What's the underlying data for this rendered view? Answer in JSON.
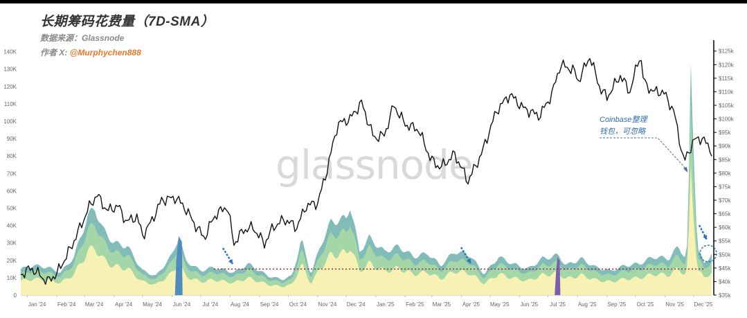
{
  "header": {
    "title": "长期筹码花费量（7D-SMA）",
    "source": "数据来源：Glassnode",
    "author_prefix": "作者 X:",
    "author_handle": "@Murphychen888",
    "watermark": "glassnode"
  },
  "annotation": {
    "line1": "Coinbase整理",
    "line2": "钱包，可忽略"
  },
  "colors": {
    "price_line": "#111111",
    "area_yellow": "#fbf2b4",
    "area_green": "#a6d7a6",
    "area_teal": "#7bb8b4",
    "area_blue": "#4f8bbf",
    "area_purple": "#7a5fb0",
    "reference_line": "#8b2c3a",
    "arrow": "#2f72c0"
  },
  "chart_data": {
    "type": "area",
    "title": "长期筹码花费量（7D-SMA）",
    "x_axis": {
      "tick_labels": [
        "Jan '24",
        "Feb '24",
        "Mar '24",
        "Apr '24",
        "May '24",
        "Jun '24",
        "Jul '24",
        "Aug '24",
        "Sep '24",
        "Oct '24",
        "Nov '24",
        "Dec '24",
        "Jan '25",
        "Feb '25",
        "Mar '25",
        "Apr '25",
        "May '25",
        "Jun '25",
        "Jul '25",
        "Aug '25",
        "Sep '25",
        "Oct '25",
        "Nov '25",
        "Dec '25"
      ],
      "range": [
        "2023-12-25",
        "2025-12-20"
      ]
    },
    "y_left": {
      "ylim": [
        0,
        145000
      ],
      "tick_labels": [
        "0",
        "10K",
        "20K",
        "30K",
        "40K",
        "50K",
        "60K",
        "70K",
        "80K",
        "90K",
        "100K",
        "110K",
        "120K",
        "130K",
        "140K"
      ]
    },
    "y_right": {
      "ylim": [
        35000,
        128000
      ],
      "tick_labels": [
        "$35k",
        "$40k",
        "$45k",
        "$50k",
        "$55k",
        "$60k",
        "$65k",
        "$70k",
        "$75k",
        "$80k",
        "$85k",
        "$90k",
        "$95k",
        "$100k",
        "$105k",
        "$110k",
        "$115k",
        "$120k",
        "$125k"
      ]
    },
    "reference_line": 15000,
    "series": [
      {
        "axis": "left",
        "x": [
          "2023-12-25",
          "2024-01-08",
          "2024-01-22",
          "2024-02-05",
          "2024-02-19",
          "2024-03-04",
          "2024-03-12",
          "2024-03-20",
          "2024-04-01",
          "2024-04-15",
          "2024-05-01",
          "2024-05-15",
          "2024-06-01",
          "2024-06-08",
          "2024-06-15",
          "2024-07-01",
          "2024-07-15",
          "2024-08-05",
          "2024-08-20",
          "2024-09-10",
          "2024-09-25",
          "2024-10-05",
          "2024-10-15",
          "2024-10-25",
          "2024-11-05",
          "2024-11-15",
          "2024-12-01",
          "2024-12-05",
          "2024-12-15",
          "2024-12-25",
          "2025-01-10",
          "2025-01-25",
          "2025-02-10",
          "2025-02-25",
          "2025-03-10",
          "2025-03-25",
          "2025-04-10",
          "2025-04-25",
          "2025-05-10",
          "2025-05-25",
          "2025-06-10",
          "2025-06-25",
          "2025-07-05",
          "2025-07-12",
          "2025-07-20",
          "2025-08-05",
          "2025-08-20",
          "2025-09-05",
          "2025-09-20",
          "2025-10-05",
          "2025-10-20",
          "2025-11-05",
          "2025-11-15",
          "2025-11-22",
          "2025-11-25",
          "2025-11-28",
          "2025-12-05",
          "2025-12-12",
          "2025-12-20"
        ],
        "values": [
          15000,
          17000,
          16000,
          13000,
          22000,
          45000,
          50000,
          38000,
          30000,
          28000,
          14000,
          11000,
          23000,
          34000,
          20000,
          14000,
          16000,
          13000,
          18000,
          11000,
          9000,
          11000,
          32000,
          12000,
          30000,
          42000,
          44000,
          52000,
          25000,
          33000,
          25000,
          28000,
          22000,
          24000,
          17000,
          25000,
          23000,
          12000,
          22000,
          18000,
          15000,
          21000,
          22000,
          23000,
          17000,
          21000,
          16000,
          14000,
          17000,
          18000,
          22000,
          21000,
          28000,
          22000,
          30000,
          130000,
          27000,
          18000,
          24000
        ]
      },
      {
        "axis": "right",
        "x": [
          "2023-12-25",
          "2024-01-05",
          "2024-01-12",
          "2024-01-22",
          "2024-02-01",
          "2024-02-15",
          "2024-02-28",
          "2024-03-05",
          "2024-03-14",
          "2024-03-25",
          "2024-04-05",
          "2024-04-14",
          "2024-04-25",
          "2024-05-01",
          "2024-05-10",
          "2024-05-21",
          "2024-06-05",
          "2024-06-15",
          "2024-06-25",
          "2024-07-05",
          "2024-07-15",
          "2024-07-29",
          "2024-08-05",
          "2024-08-15",
          "2024-08-25",
          "2024-09-06",
          "2024-09-15",
          "2024-09-27",
          "2024-10-10",
          "2024-10-20",
          "2024-11-01",
          "2024-11-10",
          "2024-11-22",
          "2024-12-05",
          "2024-12-17",
          "2024-12-30",
          "2025-01-10",
          "2025-01-20",
          "2025-02-01",
          "2025-02-15",
          "2025-02-28",
          "2025-03-10",
          "2025-03-25",
          "2025-04-08",
          "2025-04-22",
          "2025-05-08",
          "2025-05-22",
          "2025-06-05",
          "2025-06-22",
          "2025-07-05",
          "2025-07-14",
          "2025-07-28",
          "2025-08-02",
          "2025-08-14",
          "2025-08-25",
          "2025-09-01",
          "2025-09-15",
          "2025-09-25",
          "2025-10-06",
          "2025-10-10",
          "2025-10-20",
          "2025-10-30",
          "2025-11-10",
          "2025-11-21",
          "2025-12-01",
          "2025-12-10",
          "2025-12-20"
        ],
        "values": [
          42500,
          45000,
          43000,
          40000,
          43000,
          52000,
          62000,
          67000,
          72000,
          66000,
          68000,
          62000,
          64000,
          57000,
          62000,
          70000,
          71000,
          67000,
          61000,
          56000,
          64000,
          68000,
          54000,
          59000,
          60000,
          54000,
          60000,
          63000,
          60000,
          68000,
          69000,
          80000,
          98000,
          100000,
          106000,
          93000,
          94000,
          105000,
          98000,
          96000,
          85000,
          82000,
          87000,
          77000,
          87000,
          103000,
          109000,
          104000,
          101000,
          109000,
          120000,
          118000,
          114000,
          123000,
          111000,
          108000,
          116000,
          110000,
          124000,
          113000,
          110000,
          110000,
          103000,
          84000,
          92000,
          93000,
          88000
        ]
      }
    ]
  }
}
